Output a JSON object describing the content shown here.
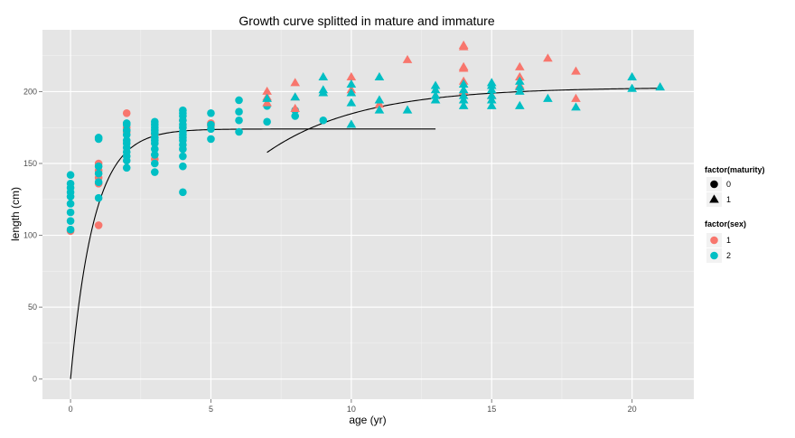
{
  "chart_data": {
    "type": "scatter",
    "title": "Growth curve splitted in mature and immature",
    "xlabel": "age (yr)",
    "ylabel": "length (cm)",
    "xlim": [
      -1,
      22.2
    ],
    "ylim": [
      -14,
      243
    ],
    "x_ticks": [
      0,
      5,
      10,
      15,
      20
    ],
    "y_ticks": [
      0,
      50,
      100,
      150,
      200
    ],
    "grid": true,
    "background": "#e5e5e5",
    "legends": [
      {
        "title": "factor(maturity)",
        "entries": [
          {
            "label": "0",
            "shape": "circle"
          },
          {
            "label": "1",
            "shape": "triangle"
          }
        ]
      },
      {
        "title": "factor(sex)",
        "entries": [
          {
            "label": "1",
            "color": "#F8766D"
          },
          {
            "label": "2",
            "color": "#00BFC4"
          }
        ]
      }
    ],
    "legend_position": "right",
    "colors": {
      "sex1": "#F8766D",
      "sex2": "#00BFC4",
      "curve": "#000000"
    },
    "points_immature": {
      "sex1": [
        [
          0,
          103
        ],
        [
          1,
          107
        ],
        [
          1,
          136
        ],
        [
          1,
          140
        ],
        [
          1,
          145
        ],
        [
          1,
          150
        ],
        [
          2,
          172
        ],
        [
          2,
          175
        ],
        [
          2,
          185
        ],
        [
          3,
          153
        ],
        [
          3,
          170
        ],
        [
          4,
          175
        ],
        [
          4,
          180
        ],
        [
          5,
          176
        ],
        [
          5,
          178
        ]
      ],
      "sex2": [
        [
          0,
          104
        ],
        [
          0,
          110
        ],
        [
          0,
          116
        ],
        [
          0,
          122
        ],
        [
          0,
          127
        ],
        [
          0,
          130
        ],
        [
          0,
          133
        ],
        [
          0,
          136
        ],
        [
          0,
          142
        ],
        [
          1,
          126
        ],
        [
          1,
          137
        ],
        [
          1,
          143
        ],
        [
          1,
          148
        ],
        [
          1,
          167
        ],
        [
          1,
          168
        ],
        [
          2,
          147
        ],
        [
          2,
          152
        ],
        [
          2,
          155
        ],
        [
          2,
          158
        ],
        [
          2,
          161
        ],
        [
          2,
          164
        ],
        [
          2,
          166
        ],
        [
          2,
          170
        ],
        [
          2,
          173
        ],
        [
          2,
          177
        ],
        [
          2,
          178
        ],
        [
          3,
          144
        ],
        [
          3,
          150
        ],
        [
          3,
          156
        ],
        [
          3,
          160
        ],
        [
          3,
          164
        ],
        [
          3,
          166
        ],
        [
          3,
          168
        ],
        [
          3,
          171
        ],
        [
          3,
          173
        ],
        [
          3,
          175
        ],
        [
          3,
          177
        ],
        [
          3,
          179
        ],
        [
          4,
          130
        ],
        [
          4,
          148
        ],
        [
          4,
          155
        ],
        [
          4,
          160
        ],
        [
          4,
          163
        ],
        [
          4,
          166
        ],
        [
          4,
          168
        ],
        [
          4,
          170
        ],
        [
          4,
          172
        ],
        [
          4,
          175
        ],
        [
          4,
          177
        ],
        [
          4,
          180
        ],
        [
          4,
          183
        ],
        [
          4,
          185
        ],
        [
          4,
          187
        ],
        [
          5,
          167
        ],
        [
          5,
          174
        ],
        [
          5,
          177
        ],
        [
          5,
          185
        ],
        [
          6,
          172
        ],
        [
          6,
          180
        ],
        [
          6,
          186
        ],
        [
          6,
          194
        ],
        [
          7,
          179
        ],
        [
          7,
          190
        ],
        [
          8,
          183
        ],
        [
          8,
          187
        ],
        [
          9,
          180
        ]
      ]
    },
    "points_mature": {
      "sex1": [
        [
          7,
          192
        ],
        [
          7,
          196
        ],
        [
          7,
          200
        ],
        [
          8,
          188
        ],
        [
          8,
          196
        ],
        [
          8,
          206
        ],
        [
          9,
          199
        ],
        [
          10,
          201
        ],
        [
          10,
          210
        ],
        [
          11,
          191
        ],
        [
          12,
          222
        ],
        [
          14,
          200
        ],
        [
          14,
          207
        ],
        [
          14,
          216
        ],
        [
          14,
          217
        ],
        [
          14,
          231
        ],
        [
          14,
          232
        ],
        [
          15,
          197
        ],
        [
          16,
          204
        ],
        [
          16,
          210
        ],
        [
          16,
          217
        ],
        [
          17,
          223
        ],
        [
          18,
          195
        ],
        [
          18,
          214
        ]
      ],
      "sex2": [
        [
          7,
          195
        ],
        [
          8,
          196
        ],
        [
          9,
          199
        ],
        [
          9,
          201
        ],
        [
          9,
          210
        ],
        [
          10,
          177
        ],
        [
          10,
          192
        ],
        [
          10,
          199
        ],
        [
          10,
          205
        ],
        [
          11,
          187
        ],
        [
          11,
          194
        ],
        [
          11,
          210
        ],
        [
          12,
          187
        ],
        [
          13,
          194
        ],
        [
          13,
          197
        ],
        [
          13,
          201
        ],
        [
          13,
          204
        ],
        [
          14,
          190
        ],
        [
          14,
          194
        ],
        [
          14,
          197
        ],
        [
          14,
          201
        ],
        [
          14,
          205
        ],
        [
          15,
          190
        ],
        [
          15,
          194
        ],
        [
          15,
          197
        ],
        [
          15,
          201
        ],
        [
          15,
          204
        ],
        [
          15,
          206
        ],
        [
          16,
          190
        ],
        [
          16,
          200
        ],
        [
          16,
          203
        ],
        [
          16,
          207
        ],
        [
          17,
          195
        ],
        [
          18,
          189
        ],
        [
          20,
          202
        ],
        [
          20,
          210
        ],
        [
          21,
          203
        ]
      ]
    },
    "curves": [
      {
        "model": "von Bertalanffy",
        "Linf": 174,
        "k": 1.2,
        "t0": 0,
        "x_range": [
          0,
          13
        ]
      },
      {
        "model": "von Bertalanffy",
        "Linf": 203,
        "k": 0.3,
        "t0": 2,
        "x_range": [
          7,
          21
        ]
      }
    ]
  }
}
